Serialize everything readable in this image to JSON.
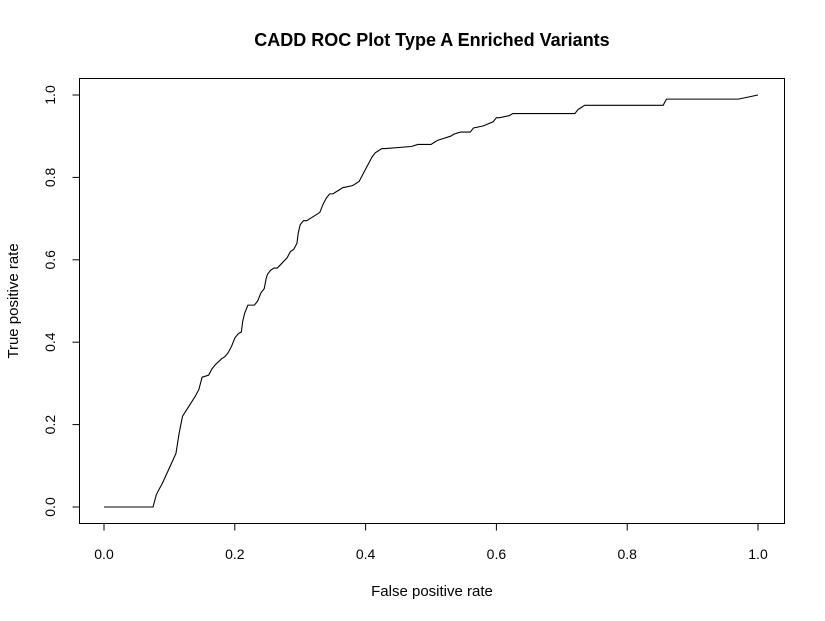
{
  "chart_data": {
    "type": "line",
    "title": "CADD ROC Plot Type A Enriched Variants",
    "xlabel": "False positive rate",
    "ylabel": "True positive rate",
    "xlim": [
      0,
      1
    ],
    "ylim": [
      0,
      1
    ],
    "xticks": [
      0.0,
      0.2,
      0.4,
      0.6,
      0.8,
      1.0
    ],
    "yticks": [
      0.0,
      0.2,
      0.4,
      0.6,
      0.8,
      1.0
    ],
    "xtick_labels": [
      "0.0",
      "0.2",
      "0.4",
      "0.6",
      "0.8",
      "1.0"
    ],
    "ytick_labels": [
      "0.0",
      "0.2",
      "0.4",
      "0.6",
      "0.8",
      "1.0"
    ],
    "grid": false,
    "legend": "none",
    "line_color": "#000000",
    "series": [
      {
        "x": [
          0.0,
          0.075,
          0.08,
          0.09,
          0.1,
          0.11,
          0.115,
          0.12,
          0.13,
          0.14,
          0.145,
          0.15,
          0.16,
          0.165,
          0.17,
          0.18,
          0.185,
          0.19,
          0.195,
          0.2,
          0.205,
          0.21,
          0.212,
          0.215,
          0.22,
          0.23,
          0.235,
          0.24,
          0.245,
          0.248,
          0.25,
          0.255,
          0.26,
          0.265,
          0.28,
          0.285,
          0.29,
          0.295,
          0.297,
          0.3,
          0.305,
          0.31,
          0.33,
          0.335,
          0.34,
          0.345,
          0.35,
          0.36,
          0.365,
          0.38,
          0.385,
          0.39,
          0.395,
          0.4,
          0.405,
          0.41,
          0.415,
          0.42,
          0.425,
          0.43,
          0.47,
          0.48,
          0.5,
          0.505,
          0.51,
          0.52,
          0.53,
          0.535,
          0.545,
          0.56,
          0.565,
          0.58,
          0.595,
          0.6,
          0.605,
          0.62,
          0.625,
          0.72,
          0.725,
          0.73,
          0.735,
          0.855,
          0.86,
          0.97,
          1.0
        ],
        "y": [
          0.0,
          0.0,
          0.03,
          0.06,
          0.095,
          0.13,
          0.18,
          0.22,
          0.245,
          0.27,
          0.285,
          0.315,
          0.32,
          0.335,
          0.345,
          0.36,
          0.365,
          0.375,
          0.39,
          0.41,
          0.42,
          0.425,
          0.45,
          0.47,
          0.49,
          0.49,
          0.5,
          0.52,
          0.53,
          0.555,
          0.565,
          0.575,
          0.58,
          0.58,
          0.605,
          0.62,
          0.625,
          0.64,
          0.665,
          0.685,
          0.695,
          0.695,
          0.715,
          0.735,
          0.75,
          0.76,
          0.76,
          0.77,
          0.775,
          0.78,
          0.785,
          0.79,
          0.805,
          0.82,
          0.835,
          0.85,
          0.86,
          0.865,
          0.87,
          0.87,
          0.875,
          0.88,
          0.88,
          0.885,
          0.89,
          0.895,
          0.9,
          0.905,
          0.91,
          0.91,
          0.92,
          0.925,
          0.935,
          0.945,
          0.945,
          0.95,
          0.955,
          0.955,
          0.965,
          0.97,
          0.975,
          0.975,
          0.99,
          0.99,
          1.0
        ]
      }
    ]
  }
}
